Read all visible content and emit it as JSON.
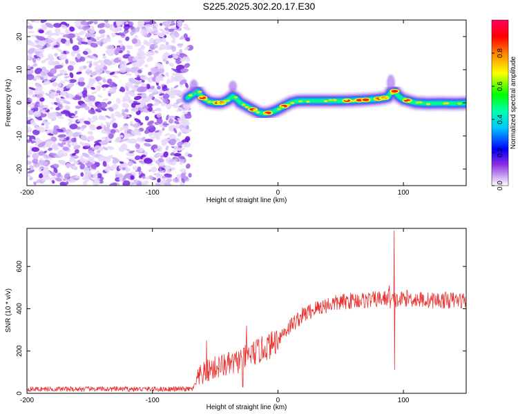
{
  "chart_data": [
    {
      "type": "heatmap",
      "title": "S225.2025.302.20.17.E30",
      "xlabel": "Height of straight line (km)",
      "ylabel": "Frequency (Hz)",
      "xlim": [
        -200,
        150
      ],
      "ylim": [
        -25,
        25
      ],
      "xticks": [
        -200,
        -100,
        0,
        100
      ],
      "xtick_labels": [
        "-200",
        "-100",
        "0",
        "100"
      ],
      "yticks": [
        -20,
        -10,
        0,
        10,
        20
      ],
      "ytick_labels": [
        "-20",
        "-10",
        "0",
        "10",
        "20"
      ],
      "noise_region_x": [
        -200,
        -70
      ],
      "ridge": {
        "x": [
          -72,
          -68,
          -64,
          -60,
          -55,
          -50,
          -45,
          -40,
          -36,
          -33,
          -30,
          -25,
          -20,
          -15,
          -10,
          -5,
          0,
          5,
          10,
          15,
          20,
          30,
          40,
          50,
          60,
          70,
          80,
          85,
          88,
          90,
          93,
          96,
          100,
          105,
          110,
          120,
          130,
          140,
          150
        ],
        "y": [
          1.5,
          2.5,
          3.5,
          1.5,
          0.3,
          0.0,
          0.0,
          0.8,
          2.0,
          1.2,
          0.0,
          -1.0,
          -2.0,
          -3.0,
          -3.2,
          -2.8,
          -2.0,
          -1.0,
          0.0,
          0.5,
          0.6,
          0.6,
          0.6,
          0.6,
          0.7,
          0.9,
          1.2,
          1.5,
          1.8,
          3.2,
          3.5,
          2.0,
          1.0,
          0.5,
          0.0,
          -0.2,
          -0.1,
          -0.2,
          -0.1
        ]
      },
      "colorbar": {
        "label": "Normalized spectral amplitude",
        "range": [
          0.0,
          1.0
        ],
        "ticks": [
          0.0,
          0.2,
          0.4,
          0.6,
          0.8
        ],
        "tick_labels": [
          "0.0",
          "0.2",
          "0.4",
          "0.6",
          "0.8"
        ],
        "colors": [
          "#ffffff",
          "#8a2be2",
          "#0000ff",
          "#00ffff",
          "#00ff00",
          "#ffff00",
          "#ff8000",
          "#ff0000",
          "#ff0080"
        ]
      }
    },
    {
      "type": "line",
      "xlabel": "Height of straight line (km)",
      "ylabel": "SNR (10 * v/v)",
      "xlim": [
        -200,
        150
      ],
      "ylim": [
        0,
        780
      ],
      "xticks": [
        -200,
        -100,
        0,
        100
      ],
      "xtick_labels": [
        "-200",
        "-100",
        "0",
        "100"
      ],
      "yticks": [
        0,
        200,
        400,
        600
      ],
      "ytick_labels": [
        "0",
        "200",
        "400",
        "600"
      ],
      "color": "#e8312e",
      "envelope": {
        "x": [
          -200,
          -150,
          -100,
          -68,
          -62,
          -55,
          -45,
          -35,
          -25,
          -15,
          -5,
          0,
          10,
          20,
          30,
          40,
          50,
          60,
          70,
          80,
          88,
          91,
          93,
          95,
          100,
          110,
          120,
          130,
          140,
          150
        ],
        "y": [
          20,
          20,
          20,
          20,
          80,
          110,
          130,
          140,
          175,
          200,
          230,
          260,
          320,
          370,
          400,
          420,
          430,
          440,
          440,
          445,
          450,
          650,
          100,
          430,
          450,
          445,
          440,
          440,
          440,
          440
        ]
      },
      "noise_amplitude": 40,
      "spikes": [
        {
          "x": 92.5,
          "y": 770
        },
        {
          "x": 93.0,
          "y": 110
        },
        {
          "x": -57,
          "y": 250
        },
        {
          "x": -25,
          "y": 320
        },
        {
          "x": -28,
          "y": 30
        }
      ]
    }
  ]
}
